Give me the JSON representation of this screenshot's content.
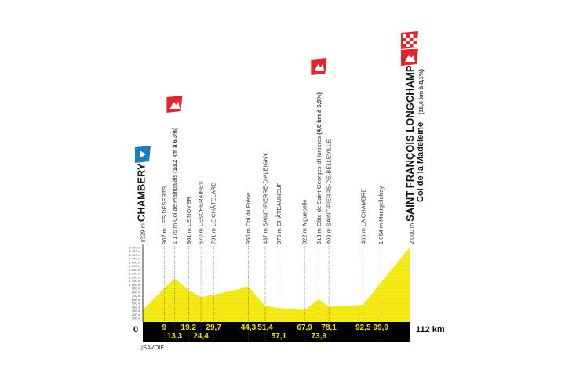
{
  "chart_data": {
    "type": "area",
    "xlabel": "",
    "ylabel": "",
    "xlim": [
      0,
      112
    ],
    "ylim": [
      0,
      2000
    ],
    "x_start_label": "0",
    "x_end_label": "112 km",
    "region": "|SAVOIE",
    "y_ticks": [
      "100 m",
      "200 m",
      "300 m",
      "400 m",
      "500 m",
      "600 m",
      "700 m",
      "800 m",
      "900 m",
      "1 000 m",
      "1 100 m",
      "1 200 m",
      "1 300 m",
      "1 400 m",
      "1 500 m",
      "1 600 m",
      "1 700 m",
      "1 800 m",
      "1 900 m",
      "2 000 m"
    ],
    "colors": {
      "fill": "#f5ea14",
      "band": "#000000",
      "km_text": "#f2e600",
      "climb_flag": "#e3262b",
      "start_flag": "#1d7bc2"
    },
    "points": [
      {
        "km": 0,
        "km_label": "",
        "elev": 329,
        "label": "329 m",
        "name": "CHAMBERY",
        "type": "start"
      },
      {
        "km": 9,
        "km_label": "9",
        "elev": 907,
        "label": "907 m LES DÉSERTS"
      },
      {
        "km": 13.3,
        "km_label": "13,3",
        "elev": 1175,
        "label": "1 175 m Col de Plainpalais",
        "climb": "(13,2 km à 6,3%)",
        "type": "climb"
      },
      {
        "km": 19.2,
        "km_label": "19,2",
        "elev": 861,
        "label": "861 m LE NOYER"
      },
      {
        "km": 24.4,
        "km_label": "24,4",
        "elev": 670,
        "label": "670 m LESCHERAINES"
      },
      {
        "km": 29.7,
        "km_label": "29,7",
        "elev": 731,
        "label": "731 m LE CHÂTELARD"
      },
      {
        "km": 44.3,
        "km_label": "44,3",
        "elev": 950,
        "label": "950 m Col du Frêne"
      },
      {
        "km": 51.4,
        "km_label": "51,4",
        "elev": 437,
        "label": "437 m SAINT-PIERRE-D'ALBIGNY"
      },
      {
        "km": 57.1,
        "km_label": "57,1",
        "elev": 376,
        "label": "376 m CHÂTEAUNEUF"
      },
      {
        "km": 67.9,
        "km_label": "67,9",
        "elev": 322,
        "label": "322 m Aiguebelle"
      },
      {
        "km": 73.9,
        "km_label": "73,9",
        "elev": 613,
        "label": "613 m Côte de Saint-Georges-d'Hurtières",
        "climb": "(4,8 km à 5,9%)",
        "type": "climb"
      },
      {
        "km": 78.1,
        "km_label": "78,1",
        "elev": 409,
        "label": "409 m SAINT-PIERRE-DE-BELLEVILLE"
      },
      {
        "km": 92.5,
        "km_label": "92,5",
        "elev": 466,
        "label": "466 m LA CHAMBRE"
      },
      {
        "km": 99.9,
        "km_label": "99,9",
        "elev": 1064,
        "label": "1 064 m Montgellafrey"
      },
      {
        "km": 112,
        "km_label": "",
        "elev": 2000,
        "label": "2 000 m",
        "name": "SAINT FRANÇOIS LONGCHAMP",
        "name2": "Col de la Madeleine",
        "climb": "(18,6 km à 8,1%)",
        "type": "finish"
      }
    ]
  }
}
